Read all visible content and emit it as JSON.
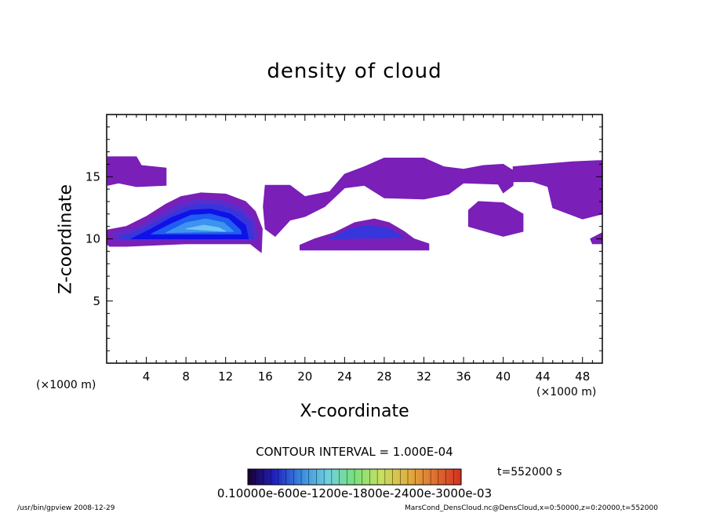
{
  "chart_data": {
    "type": "heatmap",
    "title": "density of cloud",
    "xlabel": "X-coordinate",
    "ylabel": "Z-coordinate",
    "x_unit": "(×1000 m)",
    "xlim": [
      0,
      50
    ],
    "ylim": [
      0,
      20
    ],
    "x_ticks": [
      4,
      8,
      12,
      16,
      20,
      24,
      28,
      32,
      36,
      40,
      44,
      48
    ],
    "y_ticks": [
      5,
      10,
      15
    ],
    "contour_interval": "CONTOUR INTERVAL = 1.000E-04",
    "time": "t=552000 s",
    "colorbar_tick_text": "0.10000e-600e-1200e-1800e-2400e-3000e-03",
    "colorbar_colors": [
      "#1a0030",
      "#2020c0",
      "#3a8adf",
      "#6ed0e0",
      "#7ae07a",
      "#c8e060",
      "#e0b040",
      "#e07030",
      "#d03020"
    ],
    "level_colors": [
      "#7a1fb8",
      "#5a2ccc",
      "#3636dc",
      "#1010e8",
      "#1f5ef0",
      "#3e92f2",
      "#72c6f2"
    ],
    "regions": [
      {
        "name": "upper-left-cloud",
        "level": 0,
        "points": [
          [
            0.1,
            16.6
          ],
          [
            3,
            16.6
          ],
          [
            3.5,
            15.9
          ],
          [
            6,
            15.7
          ],
          [
            6,
            14.3
          ],
          [
            3,
            14.2
          ],
          [
            1.2,
            14.5
          ],
          [
            0.1,
            14.3
          ]
        ]
      },
      {
        "name": "mid-upper-cloud",
        "level": 0,
        "points": [
          [
            16,
            14.3
          ],
          [
            18.5,
            14.3
          ],
          [
            20,
            13.4
          ],
          [
            22.5,
            13.8
          ],
          [
            24,
            15.2
          ],
          [
            26,
            15.8
          ],
          [
            28,
            16.5
          ],
          [
            32,
            16.5
          ],
          [
            34,
            15.8
          ],
          [
            36,
            15.6
          ],
          [
            38,
            15.9
          ],
          [
            40,
            16.0
          ],
          [
            41,
            15.5
          ],
          [
            41,
            14.3
          ],
          [
            40,
            13.7
          ],
          [
            39.5,
            14.4
          ],
          [
            36,
            14.5
          ],
          [
            34.5,
            13.6
          ],
          [
            32,
            13.2
          ],
          [
            28,
            13.3
          ],
          [
            26,
            14.3
          ],
          [
            24,
            14.1
          ],
          [
            22,
            12.6
          ],
          [
            20,
            11.8
          ],
          [
            18.5,
            11.5
          ],
          [
            17,
            10.2
          ],
          [
            16,
            10.8
          ],
          [
            15.8,
            12.6
          ]
        ]
      },
      {
        "name": "upper-right-cloud",
        "level": 0,
        "points": [
          [
            41,
            15.8
          ],
          [
            44,
            16.0
          ],
          [
            47,
            16.2
          ],
          [
            50,
            16.3
          ],
          [
            50,
            12.0
          ],
          [
            48,
            11.6
          ],
          [
            45,
            12.5
          ],
          [
            44.5,
            14.2
          ],
          [
            43,
            14.6
          ],
          [
            41,
            14.6
          ]
        ]
      },
      {
        "name": "right-patch",
        "level": 0,
        "points": [
          [
            36.5,
            12.3
          ],
          [
            37.5,
            13.0
          ],
          [
            40,
            12.9
          ],
          [
            42,
            12.0
          ],
          [
            42,
            10.6
          ],
          [
            40,
            10.2
          ],
          [
            36.5,
            11.0
          ]
        ]
      },
      {
        "name": "right-edge-speck",
        "level": 0,
        "points": [
          [
            48.8,
            10.0
          ],
          [
            50,
            10.5
          ],
          [
            50,
            9.6
          ],
          [
            49,
            9.6
          ]
        ]
      },
      {
        "name": "low-mound-outer",
        "level": 0,
        "points": [
          [
            19.5,
            9.5
          ],
          [
            21,
            10.0
          ],
          [
            23,
            10.5
          ],
          [
            25,
            11.3
          ],
          [
            27,
            11.6
          ],
          [
            28.5,
            11.3
          ],
          [
            30,
            10.6
          ],
          [
            31,
            10.0
          ],
          [
            32.5,
            9.6
          ],
          [
            32.5,
            9.1
          ],
          [
            19.5,
            9.1
          ]
        ]
      },
      {
        "name": "low-mound-inner",
        "level": 2,
        "points": [
          [
            22.5,
            10.0
          ],
          [
            24.5,
            10.8
          ],
          [
            26.5,
            11.1
          ],
          [
            28.5,
            10.8
          ],
          [
            30,
            10.1
          ]
        ]
      },
      {
        "name": "main-cloud-l0",
        "level": 0,
        "points": [
          [
            0,
            10.7
          ],
          [
            2,
            11.0
          ],
          [
            4,
            11.8
          ],
          [
            6,
            12.8
          ],
          [
            7.5,
            13.4
          ],
          [
            9.5,
            13.7
          ],
          [
            12,
            13.6
          ],
          [
            14,
            13.0
          ],
          [
            15,
            12.2
          ],
          [
            15.7,
            10.8
          ],
          [
            15.6,
            8.9
          ],
          [
            14.5,
            9.6
          ],
          [
            8,
            9.6
          ],
          [
            2,
            9.4
          ],
          [
            0.3,
            9.4
          ],
          [
            0,
            9.6
          ]
        ]
      },
      {
        "name": "main-cloud-l1",
        "level": 1,
        "points": [
          [
            0.8,
            10.5
          ],
          [
            3,
            10.9
          ],
          [
            5,
            11.8
          ],
          [
            7,
            12.7
          ],
          [
            9,
            13.2
          ],
          [
            11.5,
            13.1
          ],
          [
            13.5,
            12.6
          ],
          [
            14.8,
            11.6
          ],
          [
            15.2,
            10.4
          ],
          [
            15.2,
            9.9
          ],
          [
            0.8,
            9.9
          ]
        ]
      },
      {
        "name": "main-cloud-l2",
        "level": 2,
        "points": [
          [
            1.5,
            10.2
          ],
          [
            3.5,
            10.7
          ],
          [
            5.5,
            11.6
          ],
          [
            7.5,
            12.4
          ],
          [
            9.5,
            12.8
          ],
          [
            11.5,
            12.7
          ],
          [
            13.5,
            12.1
          ],
          [
            14.6,
            11.2
          ],
          [
            14.8,
            10.0
          ],
          [
            1.5,
            10.0
          ]
        ]
      },
      {
        "name": "main-cloud-l3",
        "level": 3,
        "points": [
          [
            2.5,
            10.0
          ],
          [
            4.5,
            10.8
          ],
          [
            6.5,
            11.7
          ],
          [
            8.5,
            12.3
          ],
          [
            10.5,
            12.4
          ],
          [
            12.5,
            12.0
          ],
          [
            14,
            11.1
          ],
          [
            14.3,
            10.0
          ]
        ]
      },
      {
        "name": "main-cloud-l4",
        "level": 4,
        "points": [
          [
            4.5,
            10.4
          ],
          [
            6.5,
            11.2
          ],
          [
            8.5,
            11.9
          ],
          [
            10.5,
            12.0
          ],
          [
            12.3,
            11.6
          ],
          [
            13.5,
            10.7
          ],
          [
            13.6,
            10.4
          ]
        ]
      },
      {
        "name": "main-cloud-l5",
        "level": 5,
        "points": [
          [
            6,
            10.5
          ],
          [
            8,
            11.3
          ],
          [
            10,
            11.6
          ],
          [
            11.8,
            11.3
          ],
          [
            12.8,
            10.6
          ]
        ]
      },
      {
        "name": "main-cloud-l6",
        "level": 6,
        "points": [
          [
            8,
            10.8
          ],
          [
            9.8,
            11.1
          ],
          [
            11.3,
            10.9
          ],
          [
            12,
            10.6
          ]
        ]
      }
    ]
  },
  "footer": {
    "left": "/usr/bin/gpview   2008-12-29",
    "right": "MarsCond_DensCloud.nc@DensCloud,x=0:50000,z=0:20000,t=552000"
  }
}
